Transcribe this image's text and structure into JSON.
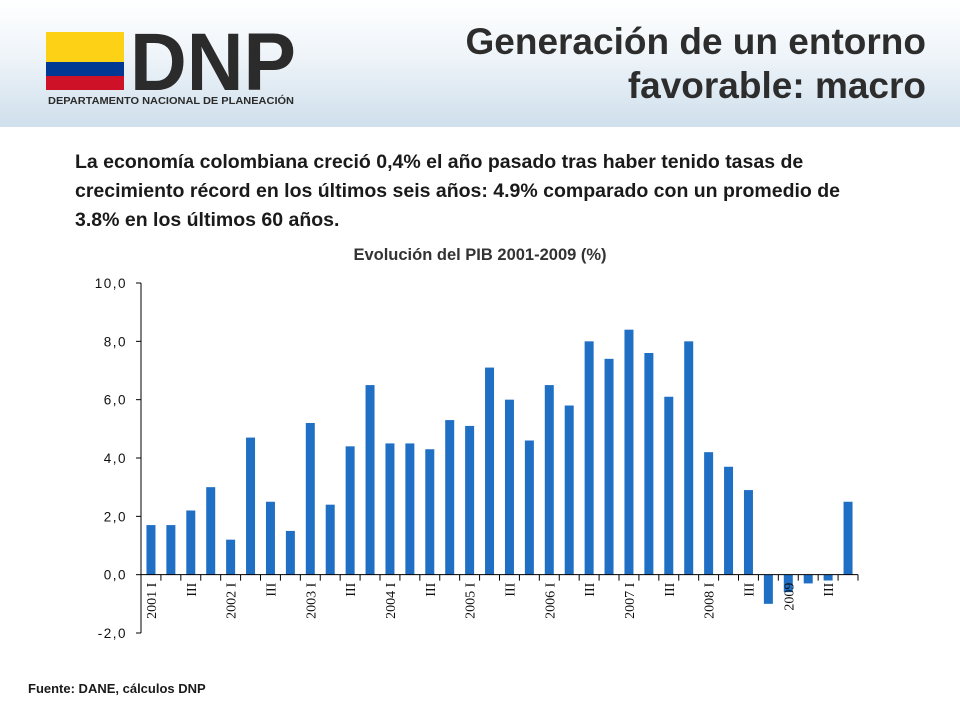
{
  "header": {
    "logo_text": "DNP",
    "logo_subtitle": "DEPARTAMENTO NACIONAL DE PLANEACIÓN",
    "title_line1": "Generación de un entorno",
    "title_line2": "favorable: macro",
    "flag_colors": [
      "#fcd116",
      "#003893",
      "#ce1126"
    ]
  },
  "intro_text": "La economía colombiana creció 0,4% el año pasado tras haber tenido tasas de crecimiento récord en los últimos seis años: 4.9% comparado con un promedio de 3.8% en los últimos 60 años.",
  "source_text": "Fuente: DANE, cálculos DNP",
  "chart_data": {
    "type": "bar",
    "title": "Evolución del PIB 2001-2009  (%)",
    "xlabel": "",
    "ylabel": "",
    "ylim": [
      -2,
      10
    ],
    "yticks": [
      "10,0",
      "8,0",
      "6,0",
      "4,0",
      "2,0",
      "0,0",
      "-2,0"
    ],
    "ytick_values": [
      10,
      8,
      6,
      4,
      2,
      0,
      -2
    ],
    "bar_color": "#1f6fc5",
    "grid": false,
    "categories": [
      "2001 I",
      "",
      "III",
      "",
      "2002 I",
      "",
      "III",
      "",
      "2003 I",
      "",
      "III",
      "",
      "2004 I",
      "",
      "III",
      "",
      "2005 I",
      "",
      "III",
      "",
      "2006 I",
      "",
      "III",
      "",
      "2007 I",
      "",
      "III",
      "",
      "2008 I",
      "",
      "III",
      "",
      "2009",
      "",
      "III",
      ""
    ],
    "values": [
      1.7,
      1.7,
      2.2,
      3.0,
      1.2,
      4.7,
      2.5,
      1.5,
      5.2,
      2.4,
      4.4,
      6.5,
      4.5,
      4.5,
      4.3,
      5.3,
      5.1,
      7.1,
      6.0,
      4.6,
      6.5,
      5.8,
      8.0,
      7.4,
      8.4,
      7.6,
      6.1,
      8.0,
      4.2,
      3.7,
      2.9,
      -1.0,
      -0.6,
      -0.3,
      -0.2,
      2.5
    ]
  }
}
